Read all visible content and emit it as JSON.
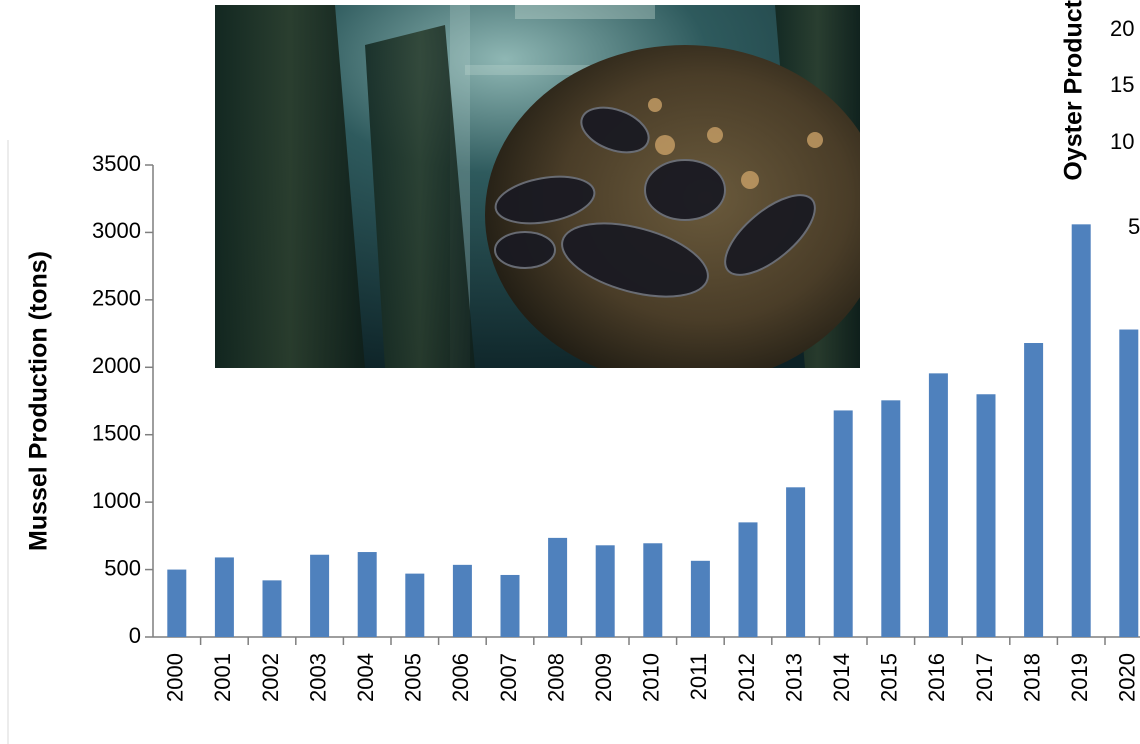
{
  "chart_data": {
    "type": "bar",
    "ylabel": "Mussel Production (tons)",
    "ylim": [
      0,
      3500
    ],
    "yticks": [
      0,
      500,
      1000,
      1500,
      2000,
      2500,
      3000,
      3500
    ],
    "categories": [
      "2000",
      "2001",
      "2002",
      "2003",
      "2004",
      "2005",
      "2006",
      "2007",
      "2008",
      "2009",
      "2010",
      "2011",
      "2012",
      "2013",
      "2014",
      "2015",
      "2016",
      "2017",
      "2018",
      "2019",
      "2020"
    ],
    "values": [
      500,
      590,
      420,
      610,
      630,
      470,
      535,
      460,
      735,
      680,
      695,
      565,
      850,
      1110,
      1680,
      1755,
      1955,
      1800,
      2180,
      3060,
      2280
    ],
    "bar_color": "#4f81bd",
    "secondary_axis_label_partial": "Oyster Product",
    "secondary_ticks_partial": [
      "20",
      "15",
      "10",
      "5"
    ]
  },
  "photo": {
    "subject": "underwater-mussel-cluster"
  }
}
